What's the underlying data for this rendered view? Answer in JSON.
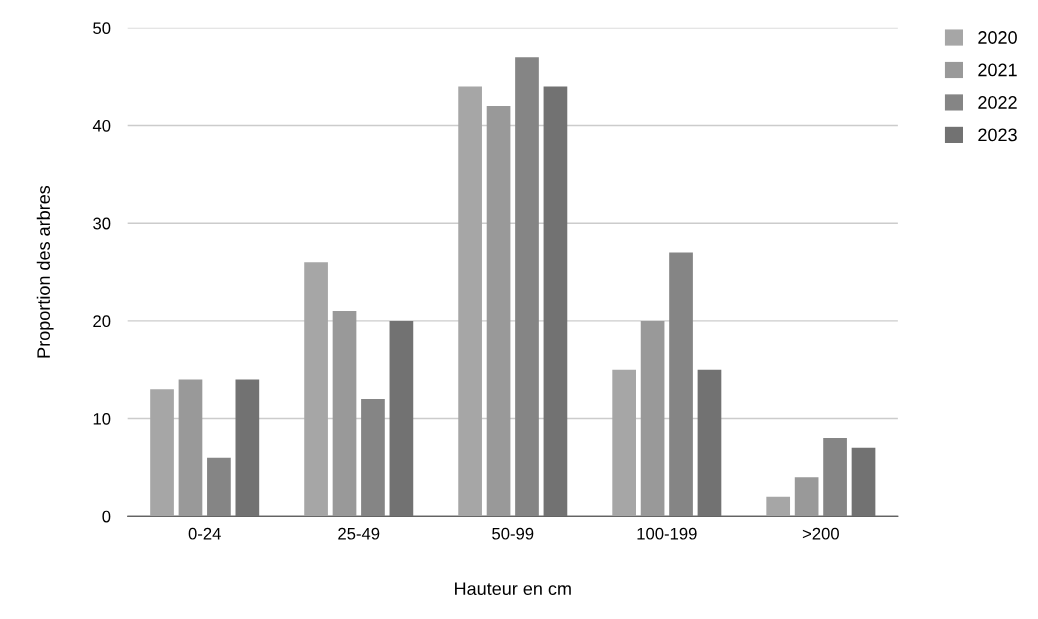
{
  "chart_data": {
    "type": "bar",
    "xlabel": "Hauteur en cm",
    "ylabel": "Proportion des arbres",
    "categories": [
      "0-24",
      "25-49",
      "50-99",
      "100-199",
      ">200"
    ],
    "series": [
      {
        "name": "2020",
        "color": "#a6a6a6",
        "values": [
          13,
          26,
          44,
          15,
          2
        ]
      },
      {
        "name": "2021",
        "color": "#999999",
        "values": [
          14,
          21,
          42,
          20,
          4
        ]
      },
      {
        "name": "2022",
        "color": "#858585",
        "values": [
          6,
          12,
          47,
          27,
          8
        ]
      },
      {
        "name": "2023",
        "color": "#727272",
        "values": [
          14,
          20,
          44,
          15,
          7
        ]
      }
    ],
    "ylim": [
      0,
      50
    ],
    "yticks": [
      0,
      10,
      20,
      30,
      40,
      50
    ],
    "grid": "y",
    "legend": "top right"
  }
}
